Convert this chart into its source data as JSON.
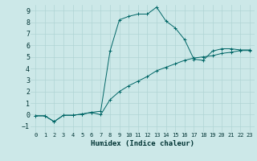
{
  "xlabel": "Humidex (Indice chaleur)",
  "background_color": "#cce8e8",
  "grid_color": "#b0d4d4",
  "line_color": "#006666",
  "xlim": [
    -0.5,
    23.5
  ],
  "ylim": [
    -1.5,
    9.5
  ],
  "xticks": [
    0,
    1,
    2,
    3,
    4,
    5,
    6,
    7,
    8,
    9,
    10,
    11,
    12,
    13,
    14,
    15,
    16,
    17,
    18,
    19,
    20,
    21,
    22,
    23
  ],
  "yticks": [
    -1,
    0,
    1,
    2,
    3,
    4,
    5,
    6,
    7,
    8,
    9
  ],
  "series1_x": [
    0,
    1,
    2,
    3,
    4,
    5,
    6,
    7,
    8,
    9,
    10,
    11,
    12,
    13,
    14,
    15,
    16,
    17,
    18,
    19,
    20,
    21,
    22,
    23
  ],
  "series1_y": [
    -0.1,
    -0.1,
    -0.6,
    -0.05,
    -0.05,
    0.05,
    0.2,
    0.3,
    5.5,
    8.2,
    8.5,
    8.7,
    8.7,
    9.3,
    8.1,
    7.5,
    6.5,
    4.8,
    4.7,
    5.5,
    5.7,
    5.7,
    5.6,
    5.6
  ],
  "series2_x": [
    0,
    1,
    2,
    3,
    4,
    5,
    6,
    7,
    8,
    9,
    10,
    11,
    12,
    13,
    14,
    15,
    16,
    17,
    18,
    19,
    20,
    21,
    22,
    23
  ],
  "series2_y": [
    -0.1,
    -0.1,
    -0.6,
    -0.05,
    -0.05,
    0.05,
    0.2,
    0.0,
    1.3,
    2.0,
    2.5,
    2.9,
    3.3,
    3.8,
    4.1,
    4.4,
    4.7,
    4.9,
    5.0,
    5.1,
    5.3,
    5.4,
    5.55,
    5.55
  ]
}
